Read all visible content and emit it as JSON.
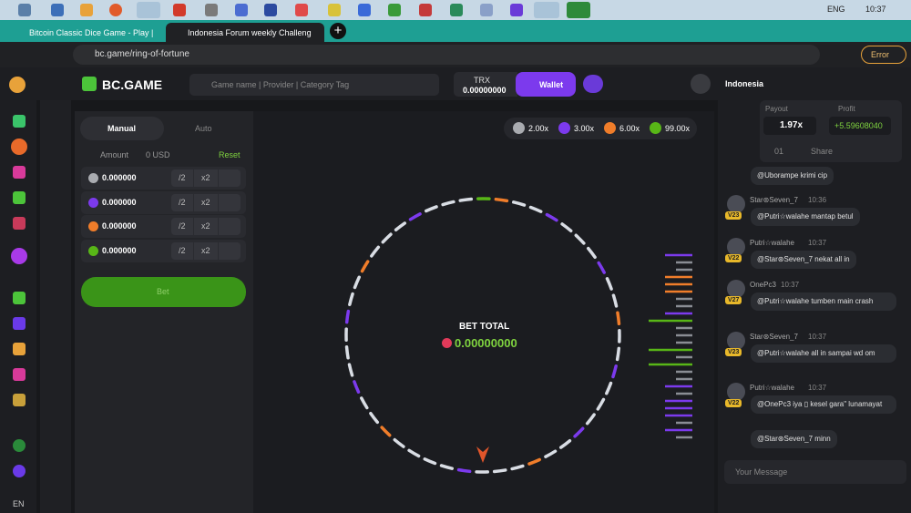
{
  "taskbar": {
    "lang": "ENG",
    "time": "10:37"
  },
  "browser": {
    "tabs": [
      "Bitcoin Classic Dice Game - Play |",
      "Indonesia Forum weekly Challeng"
    ],
    "url": "bc.game/ring-of-fortune",
    "error": "Error"
  },
  "header": {
    "logo": "BC.GAME",
    "search": "Game name | Provider | Category Tag",
    "currency": "TRX",
    "balance": "0.00000000",
    "wallet": "Wallet"
  },
  "sidebar": {
    "lang": "EN"
  },
  "panel": {
    "tabs": [
      "Manual",
      "Auto"
    ],
    "amount_label": "Amount",
    "amount_usd": "0 USD",
    "reset": "Reset",
    "rows": [
      {
        "value": "0.000000",
        "half": "/2",
        "double": "x2",
        "color": "#a9abb0"
      },
      {
        "value": "0.000000",
        "half": "/2",
        "double": "x2",
        "color": "#7c3aed"
      },
      {
        "value": "0.000000",
        "half": "/2",
        "double": "x2",
        "color": "#f07d2a"
      },
      {
        "value": "0.000000",
        "half": "/2",
        "double": "x2",
        "color": "#58b617"
      }
    ],
    "bet": "Bet"
  },
  "game": {
    "legend": [
      {
        "label": "2.00x",
        "color": "#a9abb0"
      },
      {
        "label": "3.00x",
        "color": "#7c3aed"
      },
      {
        "label": "6.00x",
        "color": "#f07d2a"
      },
      {
        "label": "99.00x",
        "color": "#58b617"
      }
    ],
    "bet_total_label": "BET TOTAL",
    "bet_total": "0.00000000"
  },
  "chat": {
    "room": "Indonesia",
    "payout_label": "Payout",
    "payout": "1.97x",
    "profit_label": "Profit",
    "profit": "+5.59608040",
    "likes": "01",
    "share": "Share",
    "first": "@Uborampe krimi cip",
    "messages": [
      {
        "user": "Star⊛Seven_7",
        "time": "10:36",
        "badge": "V23",
        "text": "@Putri☆walahe mantap betul"
      },
      {
        "user": "Putri☆walahe",
        "time": "10:37",
        "badge": "V22",
        "text": "@Star⊛Seven_7 nekat all in"
      },
      {
        "user": "OnePc3",
        "time": "10:37",
        "badge": "V27",
        "text": "@Putri☆walahe tumben main crash"
      },
      {
        "user": "Star⊛Seven_7",
        "time": "10:37",
        "badge": "V23",
        "text": "@Putri☆walahe all in sampai wd om"
      },
      {
        "user": "Putri☆walahe",
        "time": "10:37",
        "badge": "V22",
        "text": "@OnePc3 iya ▯ kesel gara\" lunamayat"
      }
    ],
    "last": "@Star⊛Seven_7 minn",
    "input": "Your Message"
  }
}
